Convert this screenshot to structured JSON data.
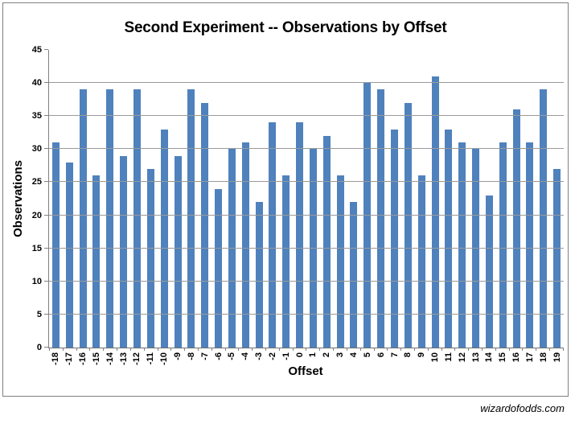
{
  "watermark": "wizardofodds.com",
  "colors": {
    "bar": "#4F81BD",
    "gridline": "#9A9A9A",
    "axis": "#808080",
    "text": "#000000",
    "frame_border": "#808080"
  },
  "chart_data": {
    "type": "bar",
    "title": "Second Experiment -- Observations by Offset",
    "xlabel": "Offset",
    "ylabel": "Observations",
    "categories": [
      "-18",
      "-17",
      "-16",
      "-15",
      "-14",
      "-13",
      "-12",
      "-11",
      "-10",
      "-9",
      "-8",
      "-7",
      "-6",
      "-5",
      "-4",
      "-3",
      "-2",
      "-1",
      "0",
      "1",
      "2",
      "3",
      "4",
      "5",
      "6",
      "7",
      "8",
      "9",
      "10",
      "11",
      "12",
      "13",
      "14",
      "15",
      "16",
      "17",
      "18",
      "19"
    ],
    "values": [
      31,
      28,
      39,
      26,
      39,
      29,
      39,
      27,
      33,
      29,
      39,
      37,
      24,
      30,
      31,
      22,
      34,
      26,
      34,
      30,
      32,
      26,
      22,
      40,
      39,
      33,
      37,
      26,
      41,
      33,
      31,
      30,
      23,
      31,
      36,
      31,
      39,
      27
    ],
    "ylim": [
      0,
      45
    ],
    "yticks": [
      0,
      5,
      10,
      15,
      20,
      25,
      30,
      35,
      40,
      45
    ],
    "grid": true,
    "legend": false,
    "x_tick_rotation": -90,
    "bar_color": "#4F81BD"
  }
}
